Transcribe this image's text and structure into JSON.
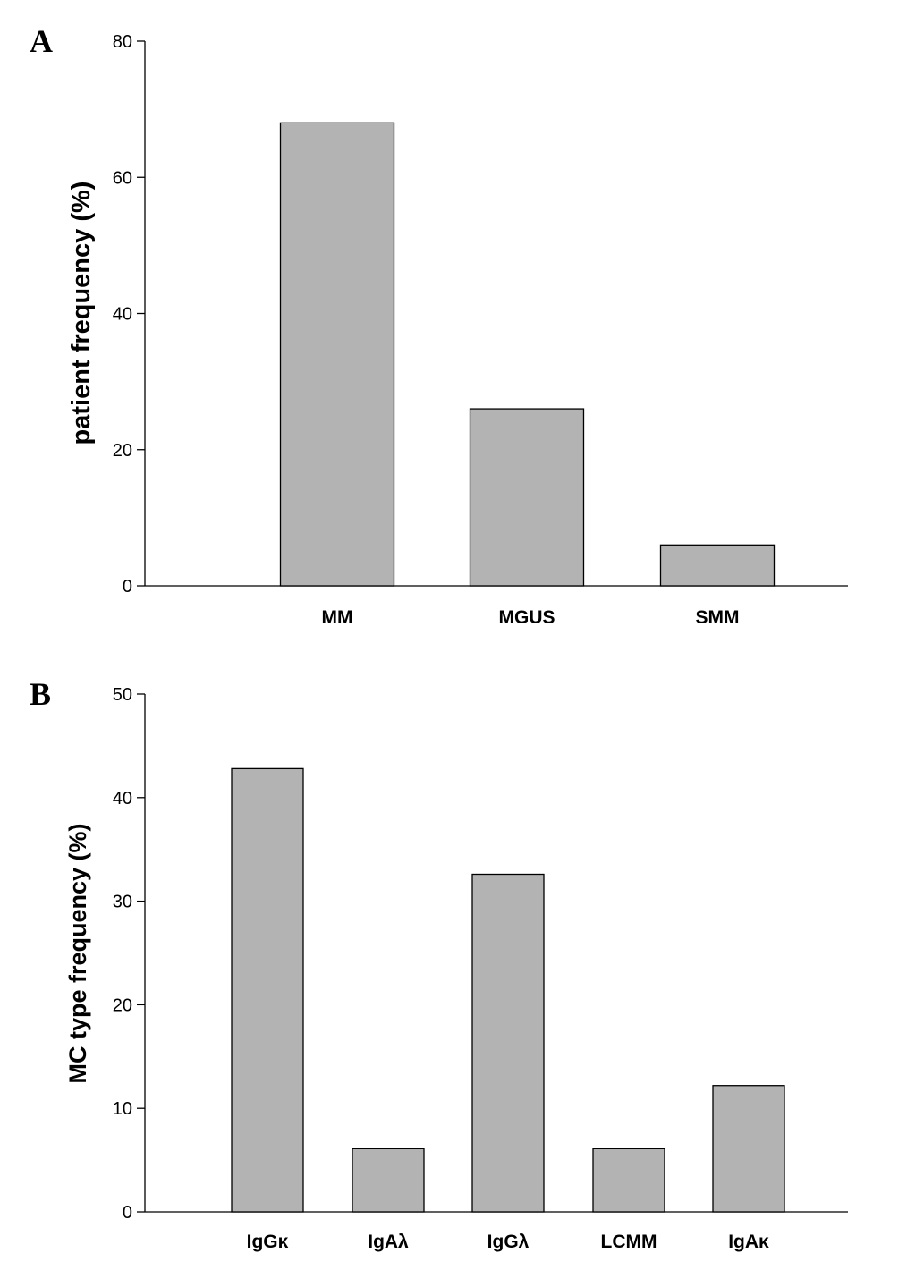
{
  "chart_data": [
    {
      "type": "bar",
      "panel_label": "A",
      "categories": [
        "MM",
        "MGUS",
        "SMM"
      ],
      "values": [
        68,
        26,
        6
      ],
      "xlabel": "",
      "ylabel": "patient  frequency (%)",
      "ylim": [
        0,
        80
      ],
      "yticks": [
        0,
        20,
        40,
        60,
        80
      ],
      "bar_color": "#b3b3b3",
      "grid": false
    },
    {
      "type": "bar",
      "panel_label": "B",
      "categories": [
        "IgGκ",
        "IgAλ",
        "IgGλ",
        "LCMM",
        "IgAκ"
      ],
      "values": [
        42.8,
        6.1,
        32.6,
        6.1,
        12.2
      ],
      "xlabel": "",
      "ylabel": "MC type frequency (%)",
      "ylim": [
        0,
        50
      ],
      "yticks": [
        0,
        10,
        20,
        30,
        40,
        50
      ],
      "bar_color": "#b3b3b3",
      "grid": false
    }
  ]
}
